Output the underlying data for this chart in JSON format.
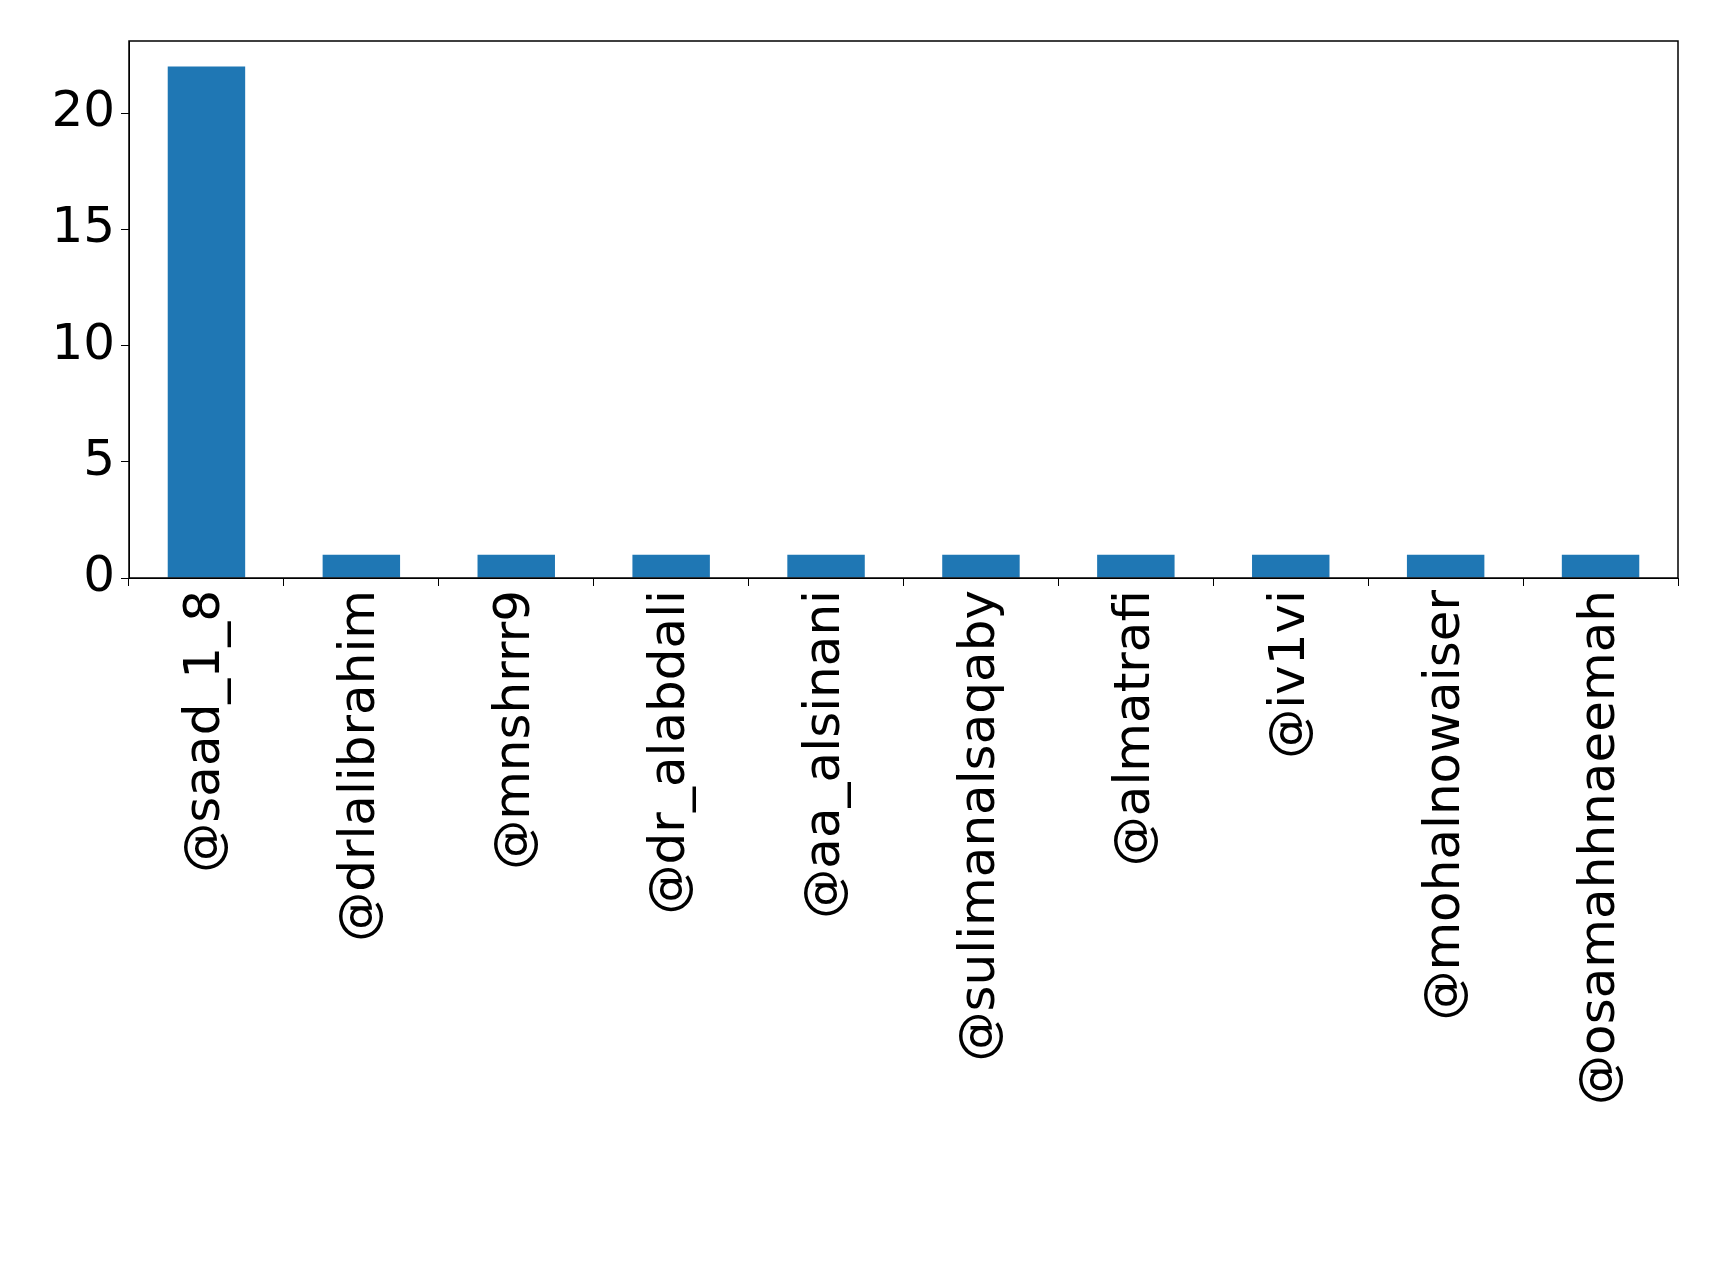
{
  "chart_data": {
    "type": "bar",
    "categories": [
      "@saad_1_8",
      "@drlalibrahim",
      "@mnshrrr9",
      "@dr_alabdali",
      "@aa_alsinani",
      "@sulimanalsaqaby",
      "@almatrafi",
      "@iv1vi",
      "@mohalnowaiser",
      "@osamahhnaeemah"
    ],
    "values": [
      22,
      1,
      1,
      1,
      1,
      1,
      1,
      1,
      1,
      1
    ],
    "color": "#1f77b4",
    "ylim": [
      0,
      23.1
    ],
    "yticks": [
      0,
      5,
      10,
      15,
      20
    ],
    "grid": false,
    "legend": false
  }
}
